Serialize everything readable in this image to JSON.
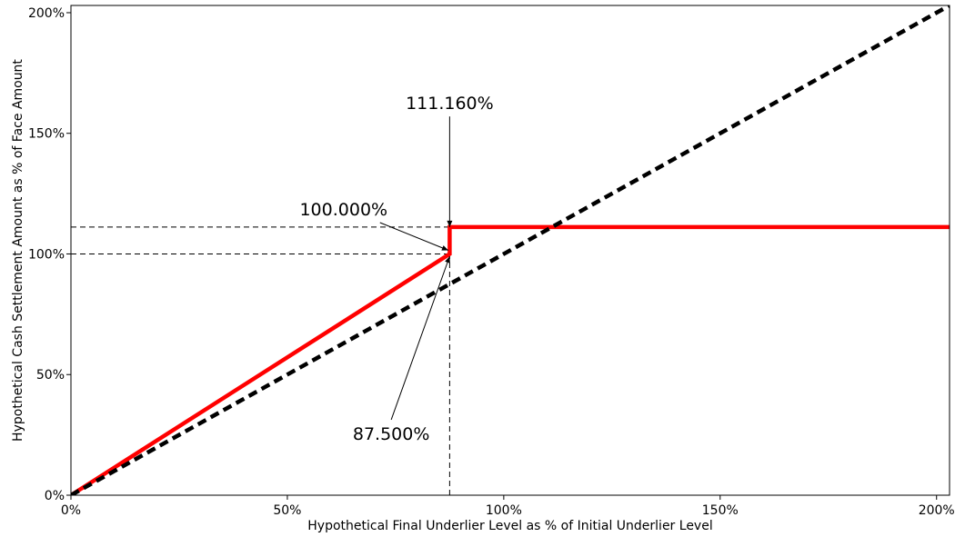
{
  "chart_data": {
    "type": "line",
    "xlabel": "Hypothetical Final Underlier Level as % of Initial Underlier Level",
    "ylabel": "Hypothetical Cash Settlement Amount as % of Face Amount",
    "xlim": [
      0,
      203
    ],
    "ylim": [
      0,
      203
    ],
    "x_ticks": [
      {
        "value": 0,
        "label": "0%"
      },
      {
        "value": 50,
        "label": "50%"
      },
      {
        "value": 100,
        "label": "100%"
      },
      {
        "value": 150,
        "label": "150%"
      },
      {
        "value": 200,
        "label": "200%"
      }
    ],
    "y_ticks": [
      {
        "value": 0,
        "label": "0%"
      },
      {
        "value": 50,
        "label": "50%"
      },
      {
        "value": 100,
        "label": "100%"
      },
      {
        "value": 150,
        "label": "150%"
      },
      {
        "value": 200,
        "label": "200%"
      }
    ],
    "grid": false,
    "series": [
      {
        "color": "#ff0000",
        "style": "solid",
        "points": [
          [
            0,
            0
          ],
          [
            87.5,
            100
          ],
          [
            87.5,
            111.16
          ],
          [
            203,
            111.16
          ]
        ]
      },
      {
        "color": "#000000",
        "style": "dashed",
        "points": [
          [
            0,
            0
          ],
          [
            203,
            203
          ]
        ]
      }
    ],
    "reference_lines": [
      {
        "points": [
          [
            0,
            111.16
          ],
          [
            87.5,
            111.16
          ]
        ]
      },
      {
        "points": [
          [
            0,
            100
          ],
          [
            87.5,
            100
          ]
        ]
      },
      {
        "points": [
          [
            87.5,
            0
          ],
          [
            87.5,
            111.16
          ]
        ]
      }
    ],
    "annotations": [
      {
        "text": "111.160%",
        "text_at": [
          87.5,
          160
        ],
        "arrow_to": [
          87.5,
          111.16
        ]
      },
      {
        "text": "100.000%",
        "text_at": [
          63,
          116
        ],
        "arrow_to": [
          87.2,
          101.5
        ]
      },
      {
        "text": "87.500%",
        "text_at": [
          74,
          23
        ],
        "arrow_to": [
          87.5,
          99
        ]
      }
    ]
  }
}
